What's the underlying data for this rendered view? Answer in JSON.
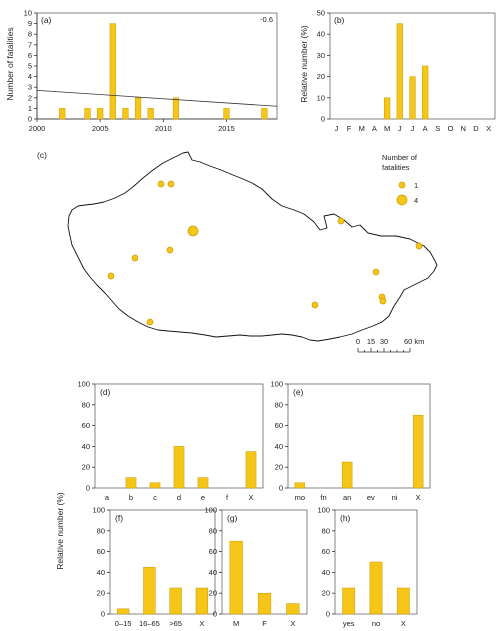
{
  "chart_data": [
    {
      "panel": "(a)",
      "type": "bar",
      "ylabel": "Number of fatalities",
      "x": [
        2002,
        2004,
        2005,
        2006,
        2007,
        2008,
        2009,
        2011,
        2015,
        2018
      ],
      "values": [
        1,
        1,
        1,
        9,
        1,
        2,
        1,
        2,
        1,
        1
      ],
      "xticks": [
        2000,
        2005,
        2010,
        2015
      ],
      "xlim": [
        2000,
        2019
      ],
      "yticks": [
        0,
        1,
        2,
        3,
        4,
        5,
        6,
        7,
        8,
        9,
        10
      ],
      "ylim": [
        0,
        10
      ],
      "trend_label": "-0.6",
      "trend": {
        "x": [
          2000,
          2019
        ],
        "y": [
          2.7,
          1.2
        ]
      }
    },
    {
      "panel": "(b)",
      "type": "bar",
      "ylabel": "Relative number (%)",
      "categories": [
        "J",
        "F",
        "M",
        "A",
        "M",
        "J",
        "J",
        "A",
        "S",
        "O",
        "N",
        "D",
        "X"
      ],
      "values": [
        0,
        0,
        0,
        0,
        10,
        45,
        20,
        25,
        0,
        0,
        0,
        0,
        0
      ],
      "yticks": [
        0,
        10,
        20,
        30,
        40,
        50
      ],
      "ylim": [
        0,
        50
      ]
    },
    {
      "panel": "(d)",
      "type": "bar",
      "categories": [
        "a",
        "b",
        "c",
        "d",
        "e",
        "f",
        "X"
      ],
      "values": [
        0,
        10,
        5,
        40,
        10,
        0,
        35
      ],
      "yticks": [
        0,
        20,
        40,
        60,
        80,
        100
      ],
      "ylim": [
        0,
        100
      ]
    },
    {
      "panel": "(e)",
      "type": "bar",
      "categories": [
        "mo",
        "fn",
        "an",
        "ev",
        "ni",
        "X"
      ],
      "values": [
        5,
        0,
        25,
        0,
        0,
        70
      ],
      "yticks": [
        0,
        20,
        40,
        60,
        80,
        100
      ],
      "ylim": [
        0,
        100
      ]
    },
    {
      "panel": "(f)",
      "type": "bar",
      "categories": [
        "0–15",
        "16–65",
        ">65",
        "X"
      ],
      "values": [
        5,
        45,
        25,
        25
      ],
      "yticks": [
        0,
        20,
        40,
        60,
        80,
        100
      ],
      "ylim": [
        0,
        100
      ]
    },
    {
      "panel": "(g)",
      "type": "bar",
      "categories": [
        "M",
        "F",
        "X"
      ],
      "values": [
        70,
        20,
        10
      ],
      "yticks": [
        0,
        20,
        40,
        60,
        80,
        100
      ],
      "ylim": [
        0,
        100
      ]
    },
    {
      "panel": "(h)",
      "type": "bar",
      "categories": [
        "yes",
        "no",
        "X"
      ],
      "values": [
        25,
        50,
        25
      ],
      "yticks": [
        0,
        20,
        40,
        60,
        80,
        100
      ],
      "ylim": [
        0,
        100
      ]
    }
  ],
  "lower_ylabel": "Relative number (%)",
  "map": {
    "panel": "(c)",
    "legend_title": [
      "Number of",
      "fatalities"
    ],
    "legend_items": [
      {
        "label": "1",
        "count": 1
      },
      {
        "label": "4",
        "count": 4
      }
    ],
    "scale_ticks": [
      "0",
      "15",
      "30",
      "60 km"
    ],
    "fill_color": "#f5c518",
    "outline_color": "#111111"
  }
}
